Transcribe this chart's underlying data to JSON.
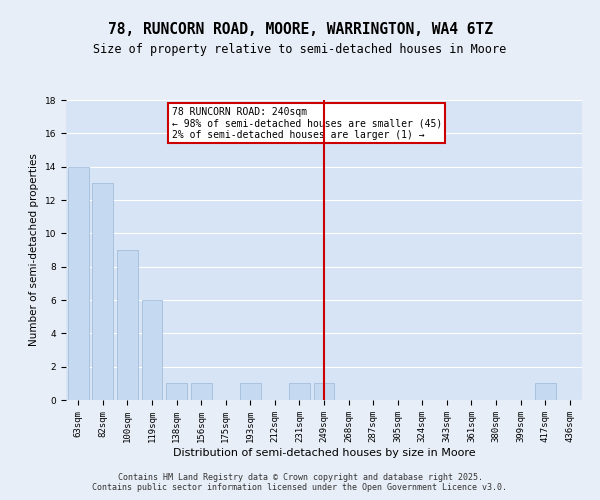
{
  "title": "78, RUNCORN ROAD, MOORE, WARRINGTON, WA4 6TZ",
  "subtitle": "Size of property relative to semi-detached houses in Moore",
  "xlabel": "Distribution of semi-detached houses by size in Moore",
  "ylabel": "Number of semi-detached properties",
  "categories": [
    "63sqm",
    "82sqm",
    "100sqm",
    "119sqm",
    "138sqm",
    "156sqm",
    "175sqm",
    "193sqm",
    "212sqm",
    "231sqm",
    "249sqm",
    "268sqm",
    "287sqm",
    "305sqm",
    "324sqm",
    "343sqm",
    "361sqm",
    "380sqm",
    "399sqm",
    "417sqm",
    "436sqm"
  ],
  "values": [
    14,
    13,
    9,
    6,
    1,
    1,
    0,
    1,
    0,
    1,
    1,
    0,
    0,
    0,
    0,
    0,
    0,
    0,
    0,
    1,
    0
  ],
  "bar_color": "#c5d9f1",
  "bar_edge_color": "#9ab8d8",
  "highlight_index": 10,
  "highlight_line_color": "#cc0000",
  "annotation_text": "78 RUNCORN ROAD: 240sqm\n← 98% of semi-detached houses are smaller (45)\n2% of semi-detached houses are larger (1) →",
  "annotation_box_color": "#cc0000",
  "ylim": [
    0,
    18
  ],
  "yticks": [
    0,
    2,
    4,
    6,
    8,
    10,
    12,
    14,
    16,
    18
  ],
  "background_color": "#e8eef7",
  "plot_bg_color": "#d6e4f5",
  "grid_color": "#ffffff",
  "footer_text": "Contains HM Land Registry data © Crown copyright and database right 2025.\nContains public sector information licensed under the Open Government Licence v3.0.",
  "title_fontsize": 10.5,
  "subtitle_fontsize": 8.5,
  "axis_label_fontsize": 7.5,
  "tick_fontsize": 6.5,
  "annotation_fontsize": 7,
  "footer_fontsize": 6
}
